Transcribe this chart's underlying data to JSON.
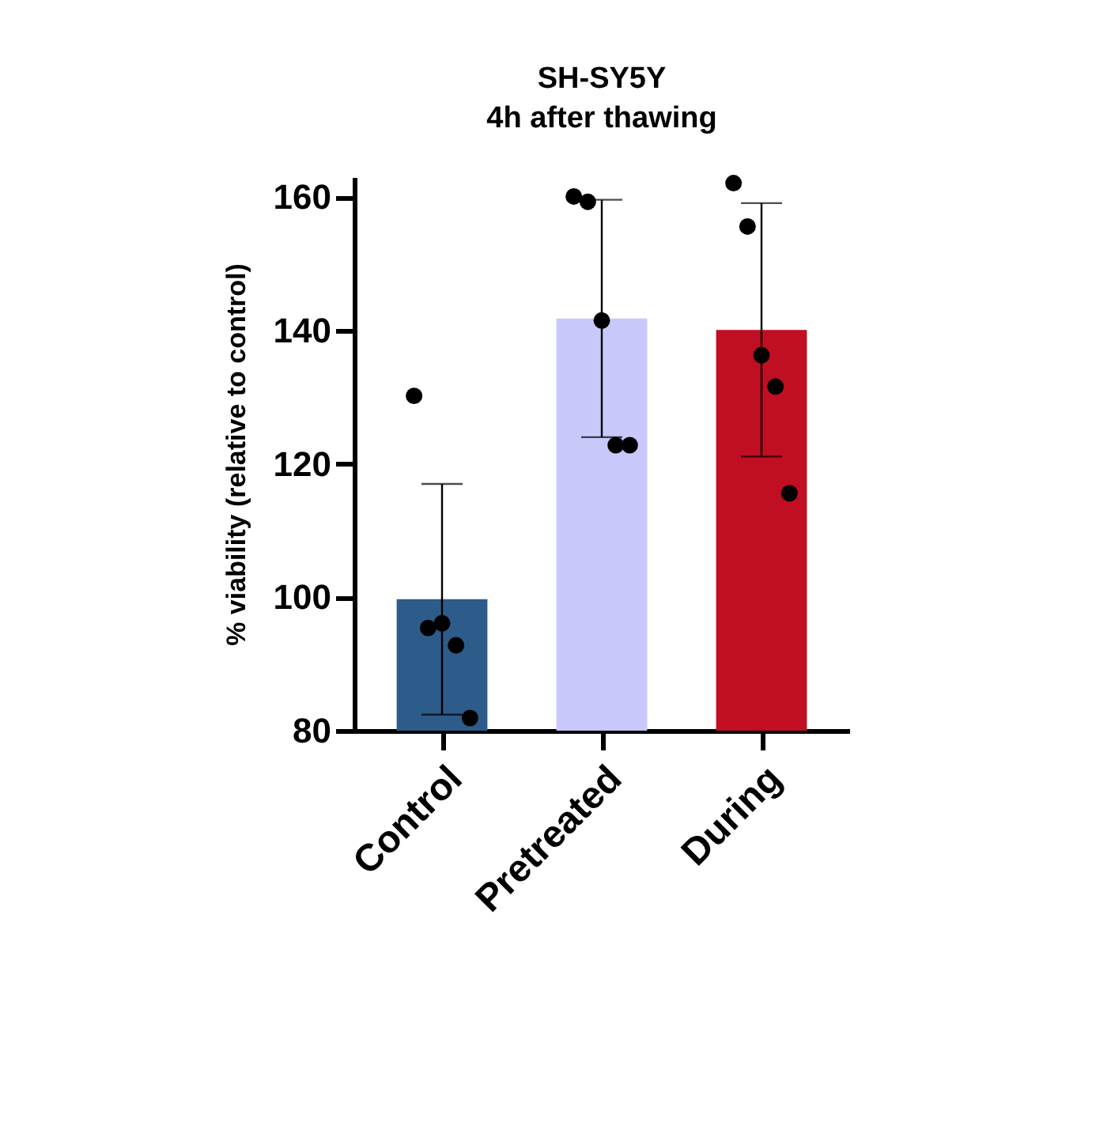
{
  "chart_data": {
    "type": "bar",
    "title": "SH-SY5Y",
    "subtitle": "4h after thawing",
    "ylabel": "% viability (relative to control)",
    "categories": [
      "Control",
      "Pretreated",
      "During"
    ],
    "series": [
      {
        "colors": [
          "#2e5c8a",
          "#c8c8fa",
          "#c00f22"
        ],
        "values": [
          99.7,
          141.8,
          140.1
        ],
        "errors": [
          17.3,
          17.8,
          19
        ]
      },
      {
        "type": "scatter",
        "color": "#000000",
        "x": [
          "Control",
          "Control",
          "Control",
          "Control",
          "Control",
          "Pretreated",
          "Pretreated",
          "Pretreated",
          "Pretreated",
          "Pretreated",
          "During",
          "During",
          "During",
          "During",
          "During"
        ],
        "values": [
          130.2,
          95.4,
          96.1,
          92.8,
          81.9,
          160.1,
          159.3,
          141.5,
          122.8,
          122.8,
          162.1,
          155.6,
          136.3,
          131.6,
          115.6
        ]
      }
    ],
    "ylim": [
      80,
      163
    ],
    "yticks": [
      80,
      100,
      120,
      140,
      160
    ],
    "grid": false,
    "marker": "circle"
  }
}
